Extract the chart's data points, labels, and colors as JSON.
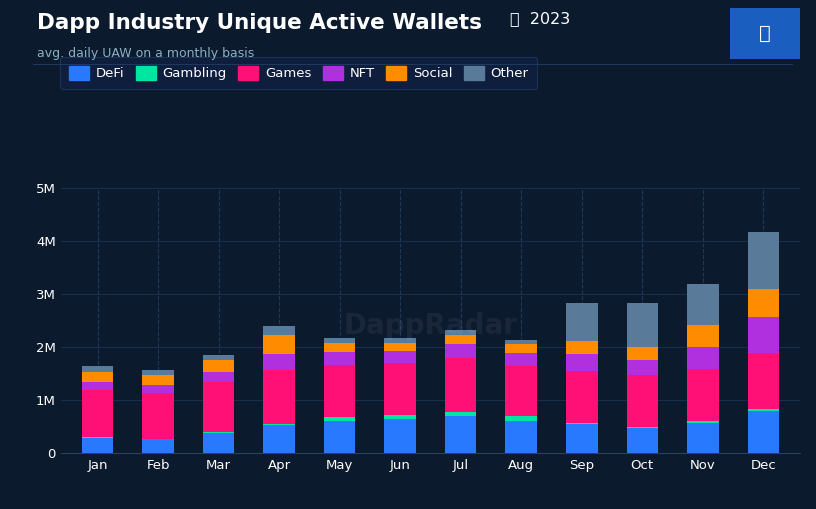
{
  "title": "Dapp Industry Unique Active Wallets",
  "title_year": "2023",
  "subtitle": "avg. daily UAW on a monthly basis",
  "background_color": "#0c1a2e",
  "plot_bg_color": "#0c1a2e",
  "text_color": "#ffffff",
  "legend_bg": "#0f2040",
  "legend_edge": "#1e3a5f",
  "months": [
    "Jan",
    "Feb",
    "Mar",
    "Apr",
    "May",
    "Jun",
    "Jul",
    "Aug",
    "Sep",
    "Oct",
    "Nov",
    "Dec"
  ],
  "categories": [
    "DeFi",
    "Gambling",
    "Games",
    "NFT",
    "Social",
    "Other"
  ],
  "colors": {
    "DeFi": "#2979ff",
    "Gambling": "#00e5a0",
    "Games": "#ff1077",
    "NFT": "#b030e0",
    "Social": "#ff8c00",
    "Other": "#5a7a9a"
  },
  "data": {
    "DeFi": [
      280000,
      260000,
      380000,
      520000,
      600000,
      640000,
      690000,
      610000,
      540000,
      470000,
      570000,
      800000
    ],
    "Gambling": [
      15000,
      12000,
      18000,
      25000,
      80000,
      80000,
      85000,
      80000,
      30000,
      30000,
      30000,
      40000
    ],
    "Games": [
      900000,
      870000,
      950000,
      1020000,
      980000,
      980000,
      1020000,
      960000,
      970000,
      970000,
      980000,
      1050000
    ],
    "NFT": [
      140000,
      140000,
      190000,
      310000,
      240000,
      230000,
      260000,
      230000,
      330000,
      280000,
      420000,
      680000
    ],
    "Social": [
      190000,
      185000,
      210000,
      360000,
      180000,
      155000,
      180000,
      175000,
      240000,
      260000,
      410000,
      530000
    ],
    "Other": [
      120000,
      110000,
      100000,
      170000,
      90000,
      85000,
      95000,
      85000,
      720000,
      820000,
      780000,
      1080000
    ]
  },
  "ylim": [
    0,
    5000000
  ],
  "yticks": [
    0,
    1000000,
    2000000,
    3000000,
    4000000,
    5000000
  ],
  "ytick_labels": [
    "0",
    "1M",
    "2M",
    "3M",
    "4M",
    "5M"
  ]
}
